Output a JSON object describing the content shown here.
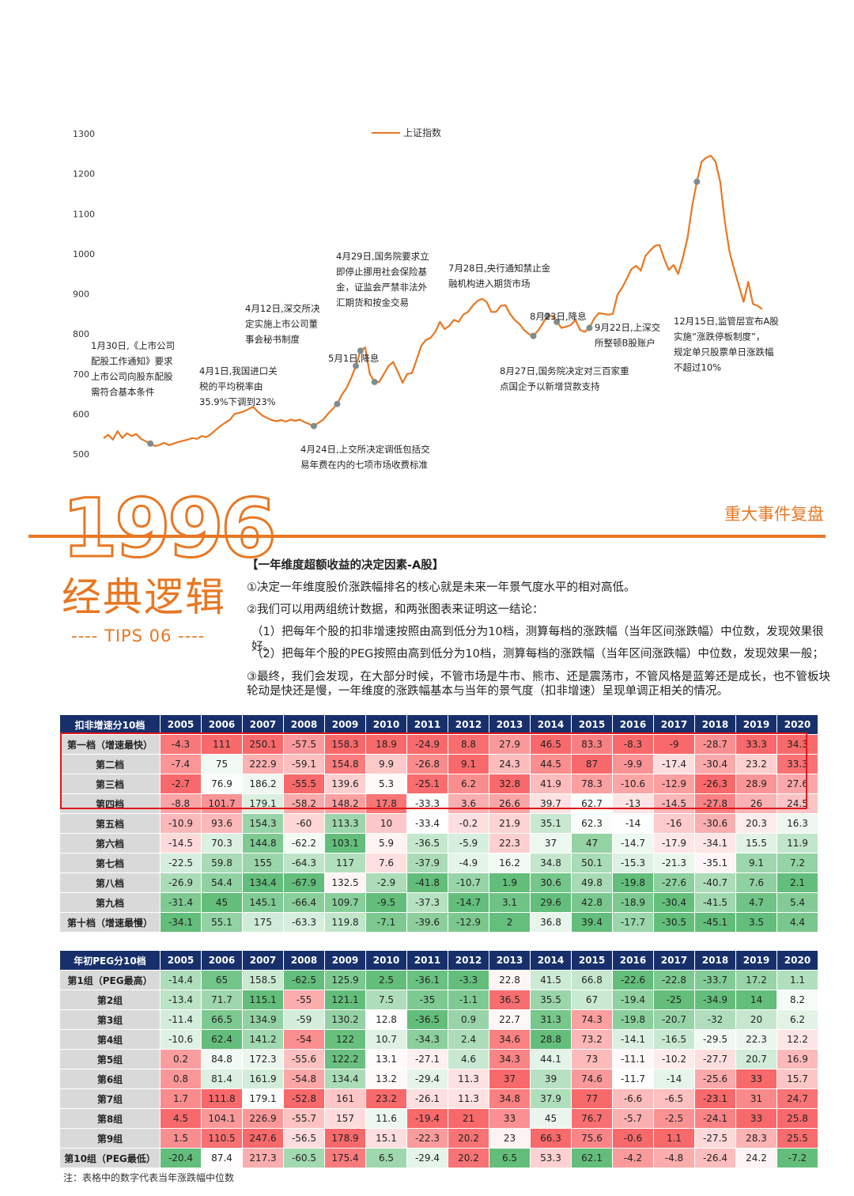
{
  "chart": {
    "legend": "上证指数",
    "y_ticks": [
      "1300",
      "1200",
      "1100",
      "1000",
      "900",
      "800",
      "700",
      "600",
      "500"
    ],
    "annotations": [
      {
        "lines": [
          "1月30日,《上市公司",
          "配股工作通知》要求",
          "上市公司向股东配股",
          "需符合基本条件"
        ]
      },
      {
        "lines": [
          "4月1日,我国进口关",
          "税的平均税率由",
          "35.9%下调到23%"
        ]
      },
      {
        "lines": [
          "4月12日,深交所决",
          "定实施上市公司董",
          "事会秘书制度"
        ]
      },
      {
        "lines": [
          "5月1日,降息"
        ]
      },
      {
        "lines": [
          "4月29日,国务院要求立",
          "即停止挪用社会保险基",
          "金，证监会严禁非法外",
          "汇期货和按金交易"
        ]
      },
      {
        "lines": [
          "4月24日,上交所决定调低包括交",
          "易年费在内的七项市场收费标准"
        ]
      },
      {
        "lines": [
          "7月28日,央行通知禁止金",
          "融机构进入期货市场"
        ]
      },
      {
        "lines": [
          "8月23日,降息"
        ]
      },
      {
        "lines": [
          "9月22日,上深交",
          "所整顿B股账户"
        ]
      },
      {
        "lines": [
          "8月27日,国务院决定对三百家重",
          "点国企予以新增贷款支持"
        ]
      },
      {
        "lines": [
          "12月15日,监管层宣布A股",
          "实施“涨跌停板制度”，",
          "规定单只股票单日涨跌幅",
          "不超过10%"
        ]
      }
    ]
  },
  "chart_data": {
    "type": "line",
    "series": [
      {
        "name": "上证指数",
        "values": [
          540,
          548,
          536,
          557,
          540,
          552,
          545,
          550,
          538,
          532,
          526,
          520,
          523,
          528,
          522,
          526,
          530,
          533,
          536,
          540,
          538,
          545,
          542,
          550,
          560,
          570,
          578,
          585,
          600,
          603,
          606,
          612,
          618,
          606,
          596,
          590,
          585,
          582,
          585,
          581,
          586,
          583,
          586,
          580,
          575,
          570,
          578,
          586,
          600,
          612,
          625,
          648,
          665,
          690,
          720,
          758,
          766,
          700,
          680,
          680,
          700,
          720,
          730,
          705,
          678,
          700,
          702,
          735,
          770,
          785,
          790,
          805,
          830,
          812,
          820,
          835,
          830,
          848,
          855,
          870,
          882,
          888,
          880,
          855,
          855,
          870,
          872,
          850,
          835,
          825,
          810,
          800,
          795,
          808,
          826,
          845,
          845,
          830,
          815,
          818,
          822,
          835,
          810,
          805,
          815,
          838,
          852,
          850,
          848,
          850,
          898,
          915,
          938,
          962,
          970,
          958,
          995,
          1008,
          1020,
          1022,
          988,
          960,
          972,
          950,
          990,
          1040,
          1120,
          1180,
          1230,
          1240,
          1245,
          1230,
          1180,
          1080,
          1005,
          960,
          920,
          880,
          930,
          875,
          870,
          862
        ]
      }
    ],
    "ylim": [
      500,
      1300
    ]
  },
  "header": {
    "year": "1996",
    "classic": "经典逻辑",
    "tips": "---- TIPS 06 ----",
    "section": "重大事件复盘"
  },
  "text": {
    "heading": "【一年维度超额收益的决定因素-A股】",
    "p1": "①决定一年维度股价涨跌幅排名的核心就是未来一年景气度水平的相对高低。",
    "p2": "②我们可以用两组统计数据，和两张图表来证明这一结论：",
    "p3": "（1）把每年个股的扣非增速按照由高到低分为10档，测算每档的涨跌幅（当年区间涨跌幅）中位数，发现效果很好。",
    "p4": "（2）把每年个股的PEG按照由高到低分为10档，测算每档的涨跌幅（当年区间涨跌幅）中位数，发现效果一般；",
    "p5a": "③最终，我们会发现，在大部分时候，不管市场是牛市、熊市、还是震荡市，不管风格是蓝筹还是成长，也不管板块",
    "p5b": "轮动是快还是慢，一年维度的涨跌幅基本与当年的景气度（扣非增速）呈现单调正相关的情况。"
  },
  "table1": {
    "header": [
      "扣非增速分10档",
      "2005",
      "2006",
      "2007",
      "2008",
      "2009",
      "2010",
      "2011",
      "2012",
      "2013",
      "2014",
      "2015",
      "2016",
      "2017",
      "2018",
      "2019",
      "2020"
    ],
    "rows": [
      {
        "label": "第一档（增速最快）",
        "values": [
          -4.3,
          111,
          250.1,
          -57.5,
          158.3,
          18.9,
          -24.9,
          8.8,
          27.9,
          46.5,
          83.3,
          -8.3,
          -9,
          -28.7,
          33.3,
          34.3
        ]
      },
      {
        "label": "第二档",
        "values": [
          -7.4,
          75,
          222.9,
          -59.1,
          154.8,
          9.9,
          -26.8,
          9.1,
          24.3,
          44.5,
          87,
          -9.9,
          -17.4,
          -30.4,
          23.2,
          33.3
        ]
      },
      {
        "label": "第三档",
        "values": [
          -2.7,
          76.9,
          186.2,
          -55.5,
          139.6,
          5.3,
          -25.1,
          6.2,
          32.8,
          41.9,
          78.3,
          -10.6,
          -12.9,
          -26.3,
          28.9,
          27.6
        ]
      },
      {
        "label": "第四档",
        "values": [
          -8.8,
          101.7,
          179.1,
          -58.2,
          148.2,
          17.8,
          -33.3,
          3.6,
          26.6,
          39.7,
          62.7,
          -13,
          -14.5,
          -27.8,
          26,
          24.5
        ]
      },
      {
        "label": "第五档",
        "values": [
          -10.9,
          93.6,
          154.3,
          -60,
          113.3,
          10,
          -33.4,
          -0.2,
          21.9,
          35.1,
          62.3,
          -14,
          -16,
          -30.6,
          20.3,
          16.3
        ]
      },
      {
        "label": "第六档",
        "values": [
          -14.5,
          70.3,
          144.8,
          -62.2,
          103.1,
          5.9,
          -36.5,
          -5.9,
          22.3,
          37,
          47,
          -14.7,
          -17.9,
          -34.1,
          15.5,
          11.9
        ]
      },
      {
        "label": "第七档",
        "values": [
          -22.5,
          59.8,
          155,
          -64.3,
          117,
          7.6,
          -37.9,
          -4.9,
          16.2,
          34.8,
          50.1,
          -15.3,
          -21.3,
          -35.1,
          9.1,
          7.2
        ]
      },
      {
        "label": "第八档",
        "values": [
          -26.9,
          54.4,
          134.4,
          -67.9,
          132.5,
          -2.9,
          -41.8,
          -10.7,
          1.9,
          30.6,
          49.8,
          -19.8,
          -27.6,
          -40.7,
          7.6,
          2.1
        ]
      },
      {
        "label": "第九档",
        "values": [
          -31.4,
          45,
          145.1,
          -66.4,
          109.7,
          -9.5,
          -37.3,
          -14.7,
          3.1,
          29.6,
          42.8,
          -18.9,
          -30.4,
          -41.5,
          4.7,
          5.4
        ]
      },
      {
        "label": "第十档（增速最慢）",
        "values": [
          -34.1,
          55.1,
          175,
          -63.3,
          119.8,
          -7.1,
          -39.6,
          -12.9,
          2,
          36.8,
          39.4,
          -17.7,
          -30.5,
          -45.1,
          3.5,
          4.4
        ]
      }
    ]
  },
  "table2": {
    "header": [
      "年初PEG分10档",
      "2005",
      "2006",
      "2007",
      "2008",
      "2009",
      "2010",
      "2011",
      "2012",
      "2013",
      "2014",
      "2015",
      "2016",
      "2017",
      "2018",
      "2019",
      "2020"
    ],
    "rows": [
      {
        "label": "第1组（PEG最高）",
        "values": [
          -14.4,
          65,
          158.5,
          -62.5,
          125.9,
          2.5,
          -36.1,
          -3.3,
          22.8,
          41.5,
          66.8,
          -22.6,
          -22.8,
          -33.7,
          17.2,
          1.1
        ]
      },
      {
        "label": "第2组",
        "values": [
          -13.4,
          71.7,
          115.1,
          -55,
          121.1,
          7.5,
          -35,
          -1.1,
          36.5,
          35.5,
          67,
          -19.4,
          -25,
          -34.9,
          14,
          8.2
        ]
      },
      {
        "label": "第3组",
        "values": [
          -11.4,
          66.5,
          134.9,
          -59,
          130.2,
          12.8,
          -36.5,
          0.9,
          22.7,
          31.3,
          74.3,
          -19.8,
          -20.7,
          -32,
          20,
          6.2
        ]
      },
      {
        "label": "第4组",
        "values": [
          -10.6,
          62.4,
          141.2,
          -54,
          122,
          10.7,
          -34.3,
          2.4,
          34.6,
          28.8,
          73.2,
          -14.1,
          -16.5,
          -29.5,
          22.3,
          12.2
        ]
      },
      {
        "label": "第5组",
        "values": [
          0.2,
          84.8,
          172.3,
          -55.6,
          122.2,
          13.1,
          -27.1,
          4.6,
          34.3,
          44.1,
          73,
          -11.1,
          -10.2,
          -27.7,
          20.7,
          16.9
        ]
      },
      {
        "label": "第6组",
        "values": [
          0.8,
          81.4,
          161.9,
          -54.8,
          134.4,
          13.2,
          -29.4,
          11.3,
          37,
          39,
          74.6,
          -11.7,
          -14,
          -25.6,
          33,
          15.7
        ]
      },
      {
        "label": "第7组",
        "values": [
          1.7,
          111.8,
          179.1,
          -52.8,
          161,
          23.2,
          -26.1,
          11.3,
          34.8,
          37.9,
          77,
          -6.6,
          -6.5,
          -23.1,
          31,
          24.7
        ]
      },
      {
        "label": "第8组",
        "values": [
          4.5,
          104.1,
          226.9,
          -55.7,
          157,
          11.6,
          -19.4,
          21,
          33,
          45,
          76.7,
          -5.7,
          -2.5,
          -24.1,
          33,
          25.8
        ]
      },
      {
        "label": "第9组",
        "values": [
          1.5,
          110.5,
          247.6,
          -56.5,
          178.9,
          15.1,
          -22.3,
          20.2,
          23,
          66.3,
          75.6,
          -0.6,
          1.1,
          -27.5,
          28.3,
          25.5
        ]
      },
      {
        "label": "第10组（PEG最低）",
        "values": [
          -20.4,
          87.4,
          217.3,
          -60.5,
          175.4,
          6.5,
          -29.4,
          20.2,
          6.5,
          53.3,
          62.1,
          -4.2,
          -4.8,
          -26.4,
          24.2,
          -7.2
        ]
      }
    ]
  },
  "note": "注：表格中的数字代表当年涨跌幅中位数",
  "colors": {
    "accent": "#e87722",
    "header_bg": "#17306b",
    "high": "#f8696b",
    "low": "#63be7b",
    "box": "#e0161b"
  }
}
